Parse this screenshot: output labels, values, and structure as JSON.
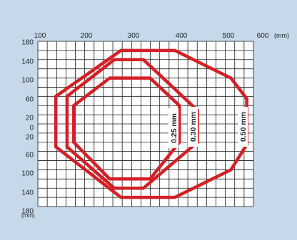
{
  "colors": {
    "panel_background": "#c5d9ea",
    "plot_background": "#ffffff",
    "grid_line": "#1a1a1a",
    "zone_stroke": "#d41f26"
  },
  "x_axis": {
    "ticks": [
      "100",
      "200",
      "300",
      "400",
      "500",
      "600"
    ],
    "unit": "(mm)"
  },
  "y_axis": {
    "ticks": [
      "180",
      "140",
      "100",
      "60",
      "20",
      "0",
      "20",
      "60",
      "100",
      "140",
      "180"
    ],
    "unit": "(mm)"
  },
  "zones": [
    {
      "label": "0.25 mm",
      "outline_mm": [
        [
          255,
          100
        ],
        [
          345,
          100
        ],
        [
          410,
          40
        ],
        [
          410,
          -40
        ],
        [
          345,
          -120
        ],
        [
          255,
          -120
        ],
        [
          175,
          -40
        ],
        [
          175,
          40
        ]
      ]
    },
    {
      "label": "0.30 mm",
      "outline_mm": [
        [
          265,
          140
        ],
        [
          330,
          140
        ],
        [
          450,
          30
        ],
        [
          450,
          -40
        ],
        [
          330,
          -140
        ],
        [
          265,
          -140
        ],
        [
          160,
          -50
        ],
        [
          160,
          60
        ]
      ]
    },
    {
      "label": "0.50 mm",
      "outline_mm": [
        [
          280,
          160
        ],
        [
          400,
          160
        ],
        [
          525,
          100
        ],
        [
          560,
          55
        ],
        [
          560,
          -45
        ],
        [
          525,
          -100
        ],
        [
          400,
          -160
        ],
        [
          280,
          -160
        ],
        [
          135,
          -50
        ],
        [
          135,
          60
        ]
      ]
    }
  ]
}
